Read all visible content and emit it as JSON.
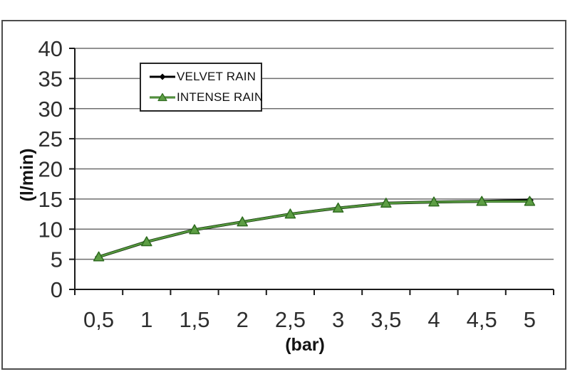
{
  "chart_data": {
    "type": "line",
    "title": "",
    "xlabel": "(bar)",
    "ylabel": "(l/min)",
    "x": [
      0.5,
      1,
      1.5,
      2,
      2.5,
      3,
      3.5,
      4,
      4.5,
      5
    ],
    "x_tick_labels": [
      "0,5",
      "1",
      "1,5",
      "2",
      "2,5",
      "3",
      "3,5",
      "4",
      "4,5",
      "5"
    ],
    "ylim": [
      0,
      40
    ],
    "y_tick_step": 5,
    "grid": "horizontal-only",
    "axis_color": "#1a1a1a",
    "gridline_color": "#6e6e6e",
    "tick_label_color": "#2e2e2e",
    "legend": {
      "position": "top-left-inside",
      "border_color": "#262626",
      "background": "#ffffff"
    },
    "series": [
      {
        "name": "VELVET RAIN",
        "color": "#000000",
        "marker": "diamond",
        "values": [
          5.4,
          7.9,
          9.9,
          11.2,
          12.5,
          13.5,
          14.3,
          14.5,
          14.6,
          14.8
        ]
      },
      {
        "name": "INTENSE RAIN",
        "color": "#5d9e44",
        "edge_color": "#2e6b1f",
        "marker": "triangle",
        "values": [
          5.4,
          7.9,
          9.9,
          11.2,
          12.5,
          13.5,
          14.3,
          14.5,
          14.6,
          14.6
        ]
      }
    ]
  }
}
